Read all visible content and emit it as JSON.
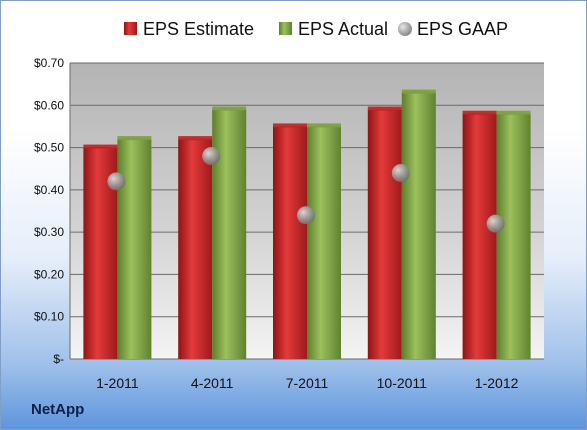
{
  "brand": "NetApp",
  "colors": {
    "estimate": "#d42a2a",
    "actual": "#86ad4a",
    "gaap": "#9a9a9a"
  },
  "chart_data": {
    "type": "bar",
    "categories": [
      "1-2011",
      "4-2011",
      "7-2011",
      "10-2011",
      "1-2012"
    ],
    "series": [
      {
        "name": "EPS Estimate",
        "kind": "bar",
        "values": [
          0.5,
          0.52,
          0.55,
          0.59,
          0.58
        ]
      },
      {
        "name": "EPS Actual",
        "kind": "bar",
        "values": [
          0.52,
          0.59,
          0.55,
          0.63,
          0.58
        ]
      },
      {
        "name": "EPS GAAP",
        "kind": "marker",
        "values": [
          0.42,
          0.48,
          0.34,
          0.44,
          0.32
        ]
      }
    ],
    "ylim": [
      0,
      0.7
    ],
    "yticks": [
      "$-",
      "$0.10",
      "$0.20",
      "$0.30",
      "$0.40",
      "$0.50",
      "$0.60",
      "$0.70"
    ],
    "grid": true,
    "legend": "top"
  }
}
